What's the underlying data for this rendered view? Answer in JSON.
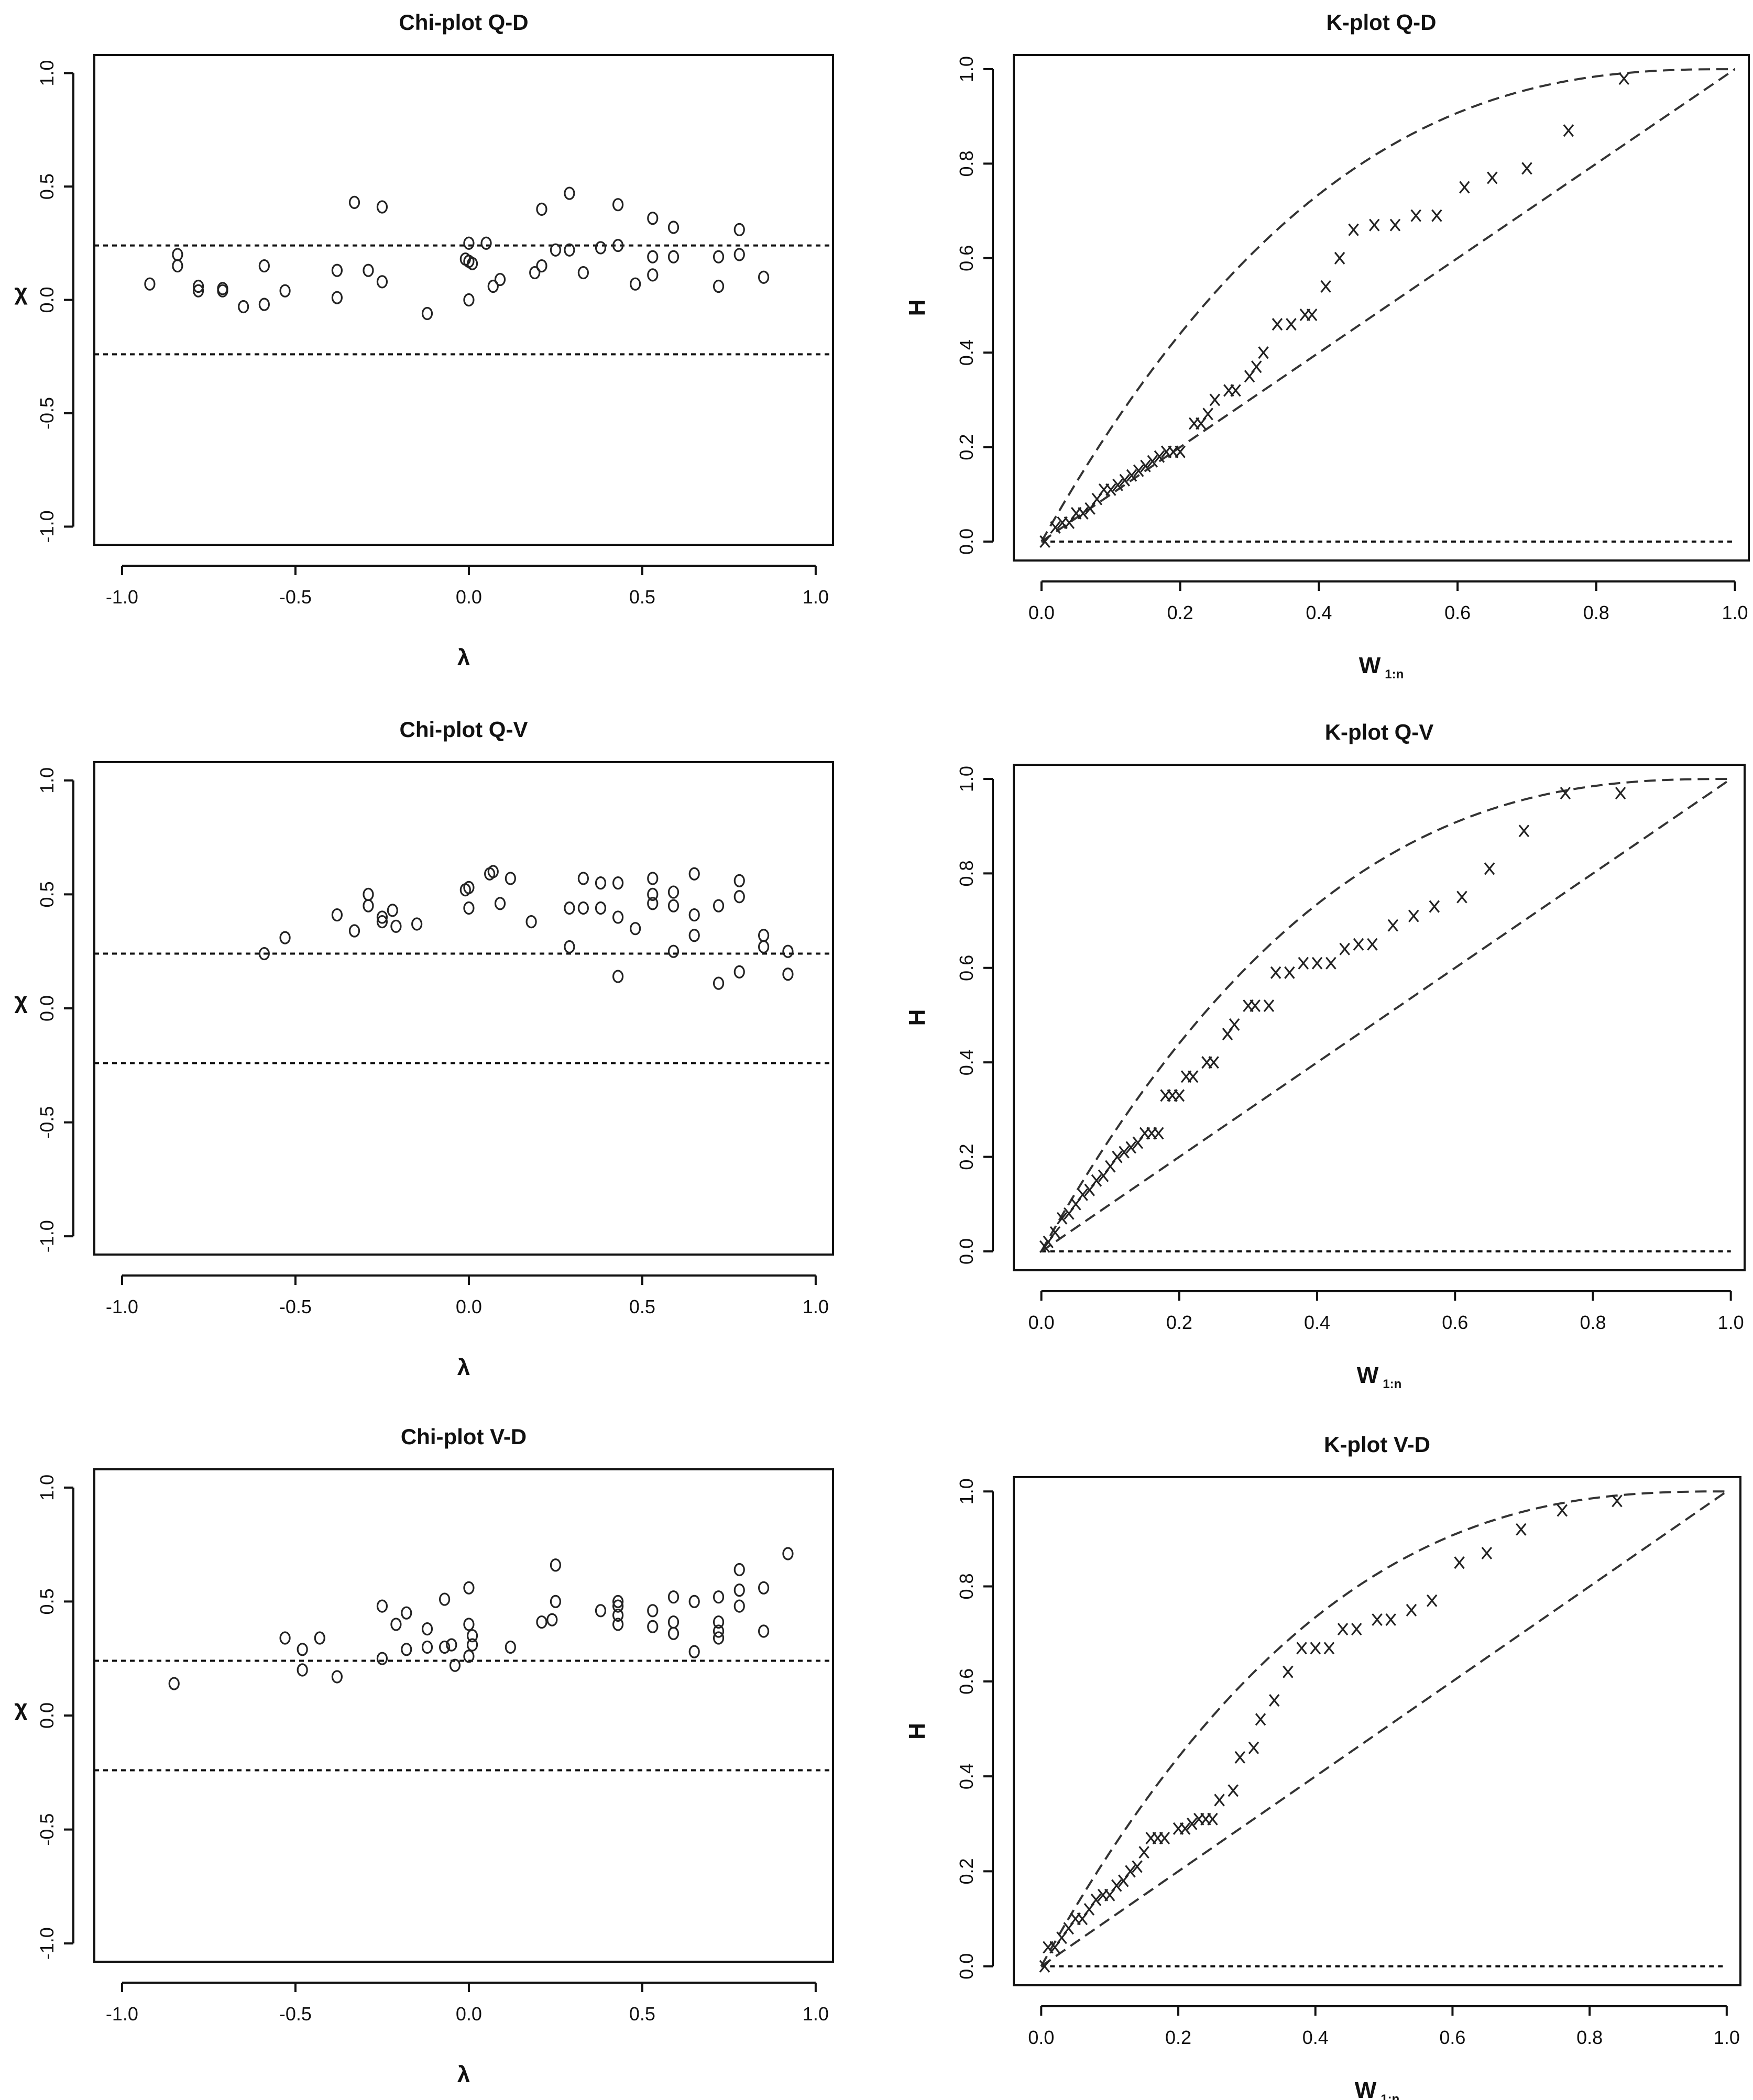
{
  "figure": {
    "panels": [
      {
        "title": "Chi-plot Q-D",
        "xlabel": "λ",
        "ylabel": "χ",
        "xticks": [
          "-1.0",
          "-0.5",
          "0.0",
          "0.5",
          "1.0"
        ],
        "yticks": [
          "-1.0",
          "-0.5",
          "0.0",
          "0.5",
          "1.0"
        ]
      },
      {
        "title": "K-plot Q-D",
        "xlabel": "W",
        "xlabel_sub": "1:n",
        "ylabel": "H",
        "xticks": [
          "0.0",
          "0.2",
          "0.4",
          "0.6",
          "0.8",
          "1.0"
        ],
        "yticks": [
          "0.0",
          "0.2",
          "0.4",
          "0.6",
          "0.8",
          "1.0"
        ]
      },
      {
        "title": "Chi-plot Q-V",
        "xlabel": "λ",
        "ylabel": "χ",
        "xticks": [
          "-1.0",
          "-0.5",
          "0.0",
          "0.5",
          "1.0"
        ],
        "yticks": [
          "-1.0",
          "-0.5",
          "0.0",
          "0.5",
          "1.0"
        ]
      },
      {
        "title": "K-plot Q-V",
        "xlabel": "W",
        "xlabel_sub": "1:n",
        "ylabel": "H",
        "xticks": [
          "0.0",
          "0.2",
          "0.4",
          "0.6",
          "0.8",
          "1.0"
        ],
        "yticks": [
          "0.0",
          "0.2",
          "0.4",
          "0.6",
          "0.8",
          "1.0"
        ]
      },
      {
        "title": "Chi-plot V-D",
        "xlabel": "λ",
        "ylabel": "χ",
        "xticks": [
          "-1.0",
          "-0.5",
          "0.0",
          "0.5",
          "1.0"
        ],
        "yticks": [
          "-1.0",
          "-0.5",
          "0.0",
          "0.5",
          "1.0"
        ]
      },
      {
        "title": "K-plot V-D",
        "xlabel": "W",
        "xlabel_sub": "1:n",
        "ylabel": "H",
        "xticks": [
          "0.0",
          "0.2",
          "0.4",
          "0.6",
          "0.8",
          "1.0"
        ],
        "yticks": [
          "0.0",
          "0.2",
          "0.4",
          "0.6",
          "0.8",
          "1.0"
        ]
      }
    ]
  },
  "chart_data": [
    {
      "type": "scatter",
      "marker": "circle",
      "title": "Chi-plot Q-D",
      "xlabel": "λ",
      "ylabel": "χ",
      "xlim": [
        -1.0,
        1.0
      ],
      "ylim": [
        -1.0,
        1.0
      ],
      "reference_lines": [
        0.24,
        -0.24
      ],
      "points": [
        [
          -0.92,
          0.07
        ],
        [
          -0.84,
          0.2
        ],
        [
          -0.84,
          0.15
        ],
        [
          -0.78,
          0.06
        ],
        [
          -0.78,
          0.04
        ],
        [
          -0.71,
          0.05
        ],
        [
          -0.71,
          0.04
        ],
        [
          -0.65,
          -0.03
        ],
        [
          -0.59,
          0.15
        ],
        [
          -0.59,
          -0.02
        ],
        [
          -0.53,
          0.04
        ],
        [
          -0.38,
          0.13
        ],
        [
          -0.38,
          0.01
        ],
        [
          -0.33,
          0.43
        ],
        [
          -0.29,
          0.13
        ],
        [
          -0.25,
          0.41
        ],
        [
          -0.25,
          0.08
        ],
        [
          -0.12,
          -0.06
        ],
        [
          -0.01,
          0.18
        ],
        [
          0.0,
          0.25
        ],
        [
          0.0,
          0.17
        ],
        [
          0.01,
          0.16
        ],
        [
          0.0,
          0.0
        ],
        [
          0.05,
          0.25
        ],
        [
          0.07,
          0.06
        ],
        [
          0.09,
          0.09
        ],
        [
          0.19,
          0.12
        ],
        [
          0.21,
          0.4
        ],
        [
          0.21,
          0.15
        ],
        [
          0.25,
          0.22
        ],
        [
          0.29,
          0.47
        ],
        [
          0.29,
          0.22
        ],
        [
          0.33,
          0.12
        ],
        [
          0.38,
          0.23
        ],
        [
          0.43,
          0.42
        ],
        [
          0.43,
          0.24
        ],
        [
          0.48,
          0.07
        ],
        [
          0.53,
          0.36
        ],
        [
          0.53,
          0.19
        ],
        [
          0.53,
          0.11
        ],
        [
          0.59,
          0.32
        ],
        [
          0.59,
          0.19
        ],
        [
          0.72,
          0.19
        ],
        [
          0.72,
          0.06
        ],
        [
          0.78,
          0.31
        ],
        [
          0.78,
          0.2
        ],
        [
          0.85,
          0.1
        ]
      ]
    },
    {
      "type": "scatter",
      "marker": "x",
      "title": "K-plot Q-D",
      "xlabel": "W 1:n",
      "ylabel": "H",
      "xlim": [
        0.0,
        1.0
      ],
      "ylim": [
        0.0,
        1.0
      ],
      "reference_lines": [
        "y = x (lower bound)",
        "upper bound curve",
        "H = 0"
      ],
      "points": [
        [
          0.005,
          0.0
        ],
        [
          0.02,
          0.03
        ],
        [
          0.03,
          0.04
        ],
        [
          0.04,
          0.04
        ],
        [
          0.05,
          0.06
        ],
        [
          0.06,
          0.06
        ],
        [
          0.07,
          0.07
        ],
        [
          0.08,
          0.09
        ],
        [
          0.09,
          0.11
        ],
        [
          0.1,
          0.11
        ],
        [
          0.11,
          0.12
        ],
        [
          0.12,
          0.13
        ],
        [
          0.13,
          0.14
        ],
        [
          0.14,
          0.15
        ],
        [
          0.15,
          0.16
        ],
        [
          0.16,
          0.17
        ],
        [
          0.17,
          0.18
        ],
        [
          0.18,
          0.19
        ],
        [
          0.19,
          0.19
        ],
        [
          0.2,
          0.19
        ],
        [
          0.22,
          0.25
        ],
        [
          0.23,
          0.25
        ],
        [
          0.24,
          0.27
        ],
        [
          0.25,
          0.3
        ],
        [
          0.27,
          0.32
        ],
        [
          0.28,
          0.32
        ],
        [
          0.3,
          0.35
        ],
        [
          0.31,
          0.37
        ],
        [
          0.32,
          0.4
        ],
        [
          0.34,
          0.46
        ],
        [
          0.36,
          0.46
        ],
        [
          0.38,
          0.48
        ],
        [
          0.39,
          0.48
        ],
        [
          0.41,
          0.54
        ],
        [
          0.43,
          0.6
        ],
        [
          0.45,
          0.66
        ],
        [
          0.48,
          0.67
        ],
        [
          0.51,
          0.67
        ],
        [
          0.54,
          0.69
        ],
        [
          0.57,
          0.69
        ],
        [
          0.61,
          0.75
        ],
        [
          0.65,
          0.77
        ],
        [
          0.7,
          0.79
        ],
        [
          0.76,
          0.87
        ],
        [
          0.84,
          0.98
        ]
      ]
    },
    {
      "type": "scatter",
      "marker": "circle",
      "title": "Chi-plot Q-V",
      "xlabel": "λ",
      "ylabel": "χ",
      "xlim": [
        -1.0,
        1.0
      ],
      "ylim": [
        -1.0,
        1.0
      ],
      "reference_lines": [
        0.24,
        -0.24
      ],
      "points": [
        [
          -0.59,
          0.24
        ],
        [
          -0.53,
          0.31
        ],
        [
          -0.38,
          0.41
        ],
        [
          -0.33,
          0.34
        ],
        [
          -0.29,
          0.5
        ],
        [
          -0.29,
          0.45
        ],
        [
          -0.25,
          0.4
        ],
        [
          -0.25,
          0.38
        ],
        [
          -0.22,
          0.43
        ],
        [
          -0.21,
          0.36
        ],
        [
          -0.15,
          0.37
        ],
        [
          -0.01,
          0.52
        ],
        [
          0.0,
          0.53
        ],
        [
          0.0,
          0.44
        ],
        [
          0.06,
          0.59
        ],
        [
          0.07,
          0.6
        ],
        [
          0.09,
          0.46
        ],
        [
          0.12,
          0.57
        ],
        [
          0.18,
          0.38
        ],
        [
          0.29,
          0.44
        ],
        [
          0.29,
          0.27
        ],
        [
          0.33,
          0.57
        ],
        [
          0.33,
          0.44
        ],
        [
          0.38,
          0.55
        ],
        [
          0.38,
          0.44
        ],
        [
          0.43,
          0.55
        ],
        [
          0.43,
          0.4
        ],
        [
          0.43,
          0.14
        ],
        [
          0.48,
          0.35
        ],
        [
          0.53,
          0.57
        ],
        [
          0.53,
          0.5
        ],
        [
          0.53,
          0.46
        ],
        [
          0.59,
          0.51
        ],
        [
          0.59,
          0.45
        ],
        [
          0.59,
          0.25
        ],
        [
          0.65,
          0.59
        ],
        [
          0.65,
          0.41
        ],
        [
          0.65,
          0.32
        ],
        [
          0.72,
          0.45
        ],
        [
          0.72,
          0.11
        ],
        [
          0.78,
          0.56
        ],
        [
          0.78,
          0.49
        ],
        [
          0.78,
          0.16
        ],
        [
          0.85,
          0.32
        ],
        [
          0.85,
          0.27
        ],
        [
          0.92,
          0.25
        ],
        [
          0.92,
          0.15
        ]
      ]
    },
    {
      "type": "scatter",
      "marker": "x",
      "title": "K-plot Q-V",
      "xlabel": "W 1:n",
      "ylabel": "H",
      "xlim": [
        0.0,
        1.0
      ],
      "ylim": [
        0.0,
        1.0
      ],
      "reference_lines": [
        "y = x (lower bound)",
        "upper bound curve",
        "H = 0"
      ],
      "points": [
        [
          0.005,
          0.01
        ],
        [
          0.01,
          0.02
        ],
        [
          0.02,
          0.04
        ],
        [
          0.03,
          0.07
        ],
        [
          0.04,
          0.08
        ],
        [
          0.05,
          0.1
        ],
        [
          0.06,
          0.12
        ],
        [
          0.07,
          0.13
        ],
        [
          0.08,
          0.15
        ],
        [
          0.09,
          0.16
        ],
        [
          0.1,
          0.18
        ],
        [
          0.11,
          0.2
        ],
        [
          0.12,
          0.21
        ],
        [
          0.13,
          0.22
        ],
        [
          0.14,
          0.23
        ],
        [
          0.15,
          0.25
        ],
        [
          0.16,
          0.25
        ],
        [
          0.17,
          0.25
        ],
        [
          0.18,
          0.33
        ],
        [
          0.19,
          0.33
        ],
        [
          0.2,
          0.33
        ],
        [
          0.21,
          0.37
        ],
        [
          0.22,
          0.37
        ],
        [
          0.24,
          0.4
        ],
        [
          0.25,
          0.4
        ],
        [
          0.27,
          0.46
        ],
        [
          0.28,
          0.48
        ],
        [
          0.3,
          0.52
        ],
        [
          0.31,
          0.52
        ],
        [
          0.33,
          0.52
        ],
        [
          0.34,
          0.59
        ],
        [
          0.36,
          0.59
        ],
        [
          0.38,
          0.61
        ],
        [
          0.4,
          0.61
        ],
        [
          0.42,
          0.61
        ],
        [
          0.44,
          0.64
        ],
        [
          0.46,
          0.65
        ],
        [
          0.48,
          0.65
        ],
        [
          0.51,
          0.69
        ],
        [
          0.54,
          0.71
        ],
        [
          0.57,
          0.73
        ],
        [
          0.61,
          0.75
        ],
        [
          0.65,
          0.81
        ],
        [
          0.7,
          0.89
        ],
        [
          0.76,
          0.97
        ],
        [
          0.84,
          0.97
        ]
      ]
    },
    {
      "type": "scatter",
      "marker": "circle",
      "title": "Chi-plot V-D",
      "xlabel": "λ",
      "ylabel": "χ",
      "xlim": [
        -1.0,
        1.0
      ],
      "ylim": [
        -1.0,
        1.0
      ],
      "reference_lines": [
        0.24,
        -0.24
      ],
      "points": [
        [
          -0.85,
          0.14
        ],
        [
          -0.53,
          0.34
        ],
        [
          -0.48,
          0.29
        ],
        [
          -0.48,
          0.2
        ],
        [
          -0.43,
          0.34
        ],
        [
          -0.38,
          0.17
        ],
        [
          -0.25,
          0.48
        ],
        [
          -0.25,
          0.25
        ],
        [
          -0.21,
          0.4
        ],
        [
          -0.18,
          0.45
        ],
        [
          -0.18,
          0.29
        ],
        [
          -0.12,
          0.38
        ],
        [
          -0.12,
          0.3
        ],
        [
          -0.07,
          0.51
        ],
        [
          -0.07,
          0.3
        ],
        [
          -0.05,
          0.31
        ],
        [
          -0.04,
          0.22
        ],
        [
          0.0,
          0.56
        ],
        [
          0.0,
          0.4
        ],
        [
          0.0,
          0.26
        ],
        [
          0.01,
          0.35
        ],
        [
          0.01,
          0.31
        ],
        [
          0.12,
          0.3
        ],
        [
          0.21,
          0.41
        ],
        [
          0.24,
          0.42
        ],
        [
          0.25,
          0.66
        ],
        [
          0.25,
          0.5
        ],
        [
          0.38,
          0.46
        ],
        [
          0.43,
          0.5
        ],
        [
          0.43,
          0.48
        ],
        [
          0.43,
          0.44
        ],
        [
          0.43,
          0.4
        ],
        [
          0.53,
          0.46
        ],
        [
          0.53,
          0.39
        ],
        [
          0.59,
          0.52
        ],
        [
          0.59,
          0.41
        ],
        [
          0.59,
          0.36
        ],
        [
          0.65,
          0.5
        ],
        [
          0.65,
          0.28
        ],
        [
          0.72,
          0.52
        ],
        [
          0.72,
          0.41
        ],
        [
          0.72,
          0.37
        ],
        [
          0.72,
          0.34
        ],
        [
          0.78,
          0.64
        ],
        [
          0.78,
          0.55
        ],
        [
          0.78,
          0.48
        ],
        [
          0.85,
          0.56
        ],
        [
          0.85,
          0.37
        ],
        [
          0.92,
          0.71
        ]
      ]
    },
    {
      "type": "scatter",
      "marker": "x",
      "title": "K-plot V-D",
      "xlabel": "W 1:n",
      "ylabel": "H",
      "xlim": [
        0.0,
        1.0
      ],
      "ylim": [
        0.0,
        1.0
      ],
      "reference_lines": [
        "y = x (lower bound)",
        "upper bound curve",
        "H = 0"
      ],
      "points": [
        [
          0.005,
          0.0
        ],
        [
          0.01,
          0.04
        ],
        [
          0.02,
          0.04
        ],
        [
          0.03,
          0.06
        ],
        [
          0.04,
          0.08
        ],
        [
          0.05,
          0.1
        ],
        [
          0.06,
          0.1
        ],
        [
          0.07,
          0.12
        ],
        [
          0.08,
          0.14
        ],
        [
          0.09,
          0.15
        ],
        [
          0.1,
          0.15
        ],
        [
          0.11,
          0.17
        ],
        [
          0.12,
          0.18
        ],
        [
          0.13,
          0.2
        ],
        [
          0.14,
          0.21
        ],
        [
          0.15,
          0.24
        ],
        [
          0.16,
          0.27
        ],
        [
          0.17,
          0.27
        ],
        [
          0.18,
          0.27
        ],
        [
          0.2,
          0.29
        ],
        [
          0.21,
          0.29
        ],
        [
          0.22,
          0.3
        ],
        [
          0.23,
          0.31
        ],
        [
          0.24,
          0.31
        ],
        [
          0.25,
          0.31
        ],
        [
          0.26,
          0.35
        ],
        [
          0.28,
          0.37
        ],
        [
          0.29,
          0.44
        ],
        [
          0.31,
          0.46
        ],
        [
          0.32,
          0.52
        ],
        [
          0.34,
          0.56
        ],
        [
          0.36,
          0.62
        ],
        [
          0.38,
          0.67
        ],
        [
          0.4,
          0.67
        ],
        [
          0.42,
          0.67
        ],
        [
          0.44,
          0.71
        ],
        [
          0.46,
          0.71
        ],
        [
          0.49,
          0.73
        ],
        [
          0.51,
          0.73
        ],
        [
          0.54,
          0.75
        ],
        [
          0.57,
          0.77
        ],
        [
          0.61,
          0.85
        ],
        [
          0.65,
          0.87
        ],
        [
          0.7,
          0.92
        ],
        [
          0.76,
          0.96
        ],
        [
          0.84,
          0.98
        ]
      ]
    }
  ]
}
